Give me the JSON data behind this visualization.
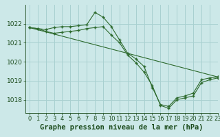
{
  "title": "Graphe pression niveau de la mer (hPa)",
  "xlim": [
    -0.5,
    23
  ],
  "ylim": [
    1017.3,
    1023.0
  ],
  "yticks": [
    1018,
    1019,
    1020,
    1021,
    1022
  ],
  "xticks": [
    0,
    1,
    2,
    3,
    4,
    5,
    6,
    7,
    8,
    9,
    10,
    11,
    12,
    13,
    14,
    15,
    16,
    17,
    18,
    19,
    20,
    21,
    22,
    23
  ],
  "line1": {
    "x": [
      0,
      1,
      2,
      3,
      4,
      5,
      6,
      7,
      8,
      9,
      10,
      11,
      12,
      13,
      14,
      15,
      16,
      17,
      18,
      19,
      20,
      21,
      22,
      23
    ],
    "y": [
      1021.8,
      1021.75,
      1021.7,
      1021.8,
      1021.85,
      1021.85,
      1021.9,
      1021.95,
      1022.6,
      1022.35,
      1021.85,
      1021.15,
      1020.45,
      1020.15,
      1019.75,
      1018.65,
      1017.75,
      1017.65,
      1018.1,
      1018.2,
      1018.35,
      1019.05,
      1019.15,
      1019.2
    ]
  },
  "line2": {
    "x": [
      0,
      1,
      2,
      3,
      4,
      5,
      6,
      7,
      8,
      9,
      10,
      11,
      12,
      13,
      14,
      15,
      16,
      17,
      18,
      19,
      20,
      21,
      22,
      23
    ],
    "y": [
      1021.8,
      1021.75,
      1021.6,
      1021.5,
      1021.55,
      1021.6,
      1021.65,
      1021.75,
      1021.8,
      1021.85,
      1021.4,
      1021.0,
      1020.35,
      1019.95,
      1019.45,
      1018.75,
      1017.7,
      1017.55,
      1018.0,
      1018.1,
      1018.2,
      1018.9,
      1019.05,
      1019.15
    ]
  },
  "line3": {
    "x": [
      0,
      23
    ],
    "y": [
      1021.8,
      1019.2
    ]
  },
  "line_color": "#2d6a2d",
  "bg_color": "#cce8e8",
  "grid_color": "#a8d0d0",
  "title_color": "#1a4a1a",
  "tick_color": "#1a4a1a",
  "title_fontsize": 7.5,
  "tick_fontsize": 6.5
}
